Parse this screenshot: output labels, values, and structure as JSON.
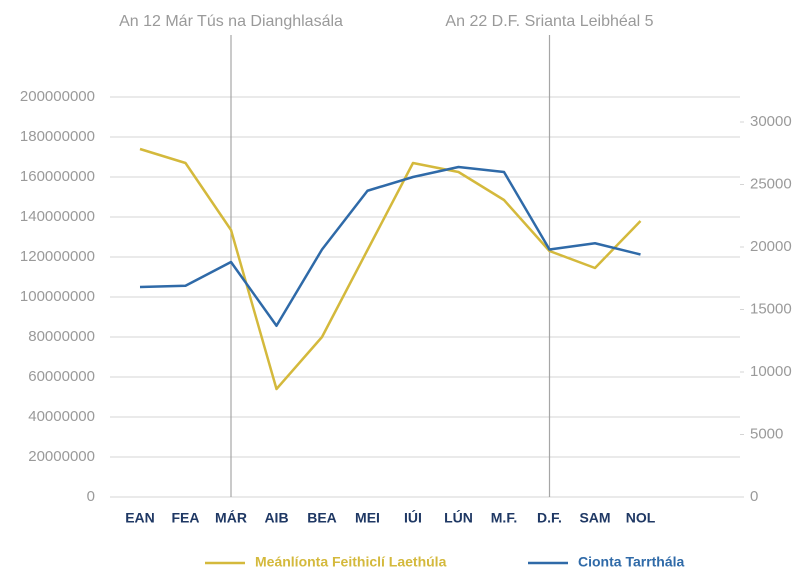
{
  "chart_data": {
    "type": "line",
    "categories": [
      "EAN",
      "FEA",
      "MÁR",
      "AIB",
      "BEA",
      "MEI",
      "IÚI",
      "LÚN",
      "M.F.",
      "D.F.",
      "SAM",
      "NOL"
    ],
    "series": [
      {
        "name": "Meánlíonta Feithiclí Laethúla",
        "color": "#d4b93c",
        "values": [
          174000000,
          167000000,
          133500000,
          54000000,
          80000000,
          123500000,
          167000000,
          162500000,
          148500000,
          123000000,
          114500000,
          138000000
        ]
      },
      {
        "name": "Cionta Tarrthála",
        "color": "#2f6aa8",
        "axis": "y2",
        "values": [
          16800,
          16900,
          18800,
          13700,
          19800,
          24500,
          25600,
          26400,
          26000,
          19800,
          20300,
          19400
        ]
      }
    ],
    "ylim": [
      0,
      200000000
    ],
    "yticks": [
      0,
      20000000,
      40000000,
      60000000,
      80000000,
      100000000,
      120000000,
      140000000,
      160000000,
      180000000,
      200000000
    ],
    "y2lim": [
      0,
      32000
    ],
    "y2ticks": [
      0,
      5000,
      10000,
      15000,
      20000,
      25000,
      30000
    ],
    "grid": true,
    "legend": "bottom",
    "annotations": [
      {
        "text": "An 12 Már Tús na Dianghlasála",
        "category": "MÁR"
      },
      {
        "text": "An 22 D.F. Srianta Leibhéal 5",
        "category": "D.F."
      }
    ]
  }
}
